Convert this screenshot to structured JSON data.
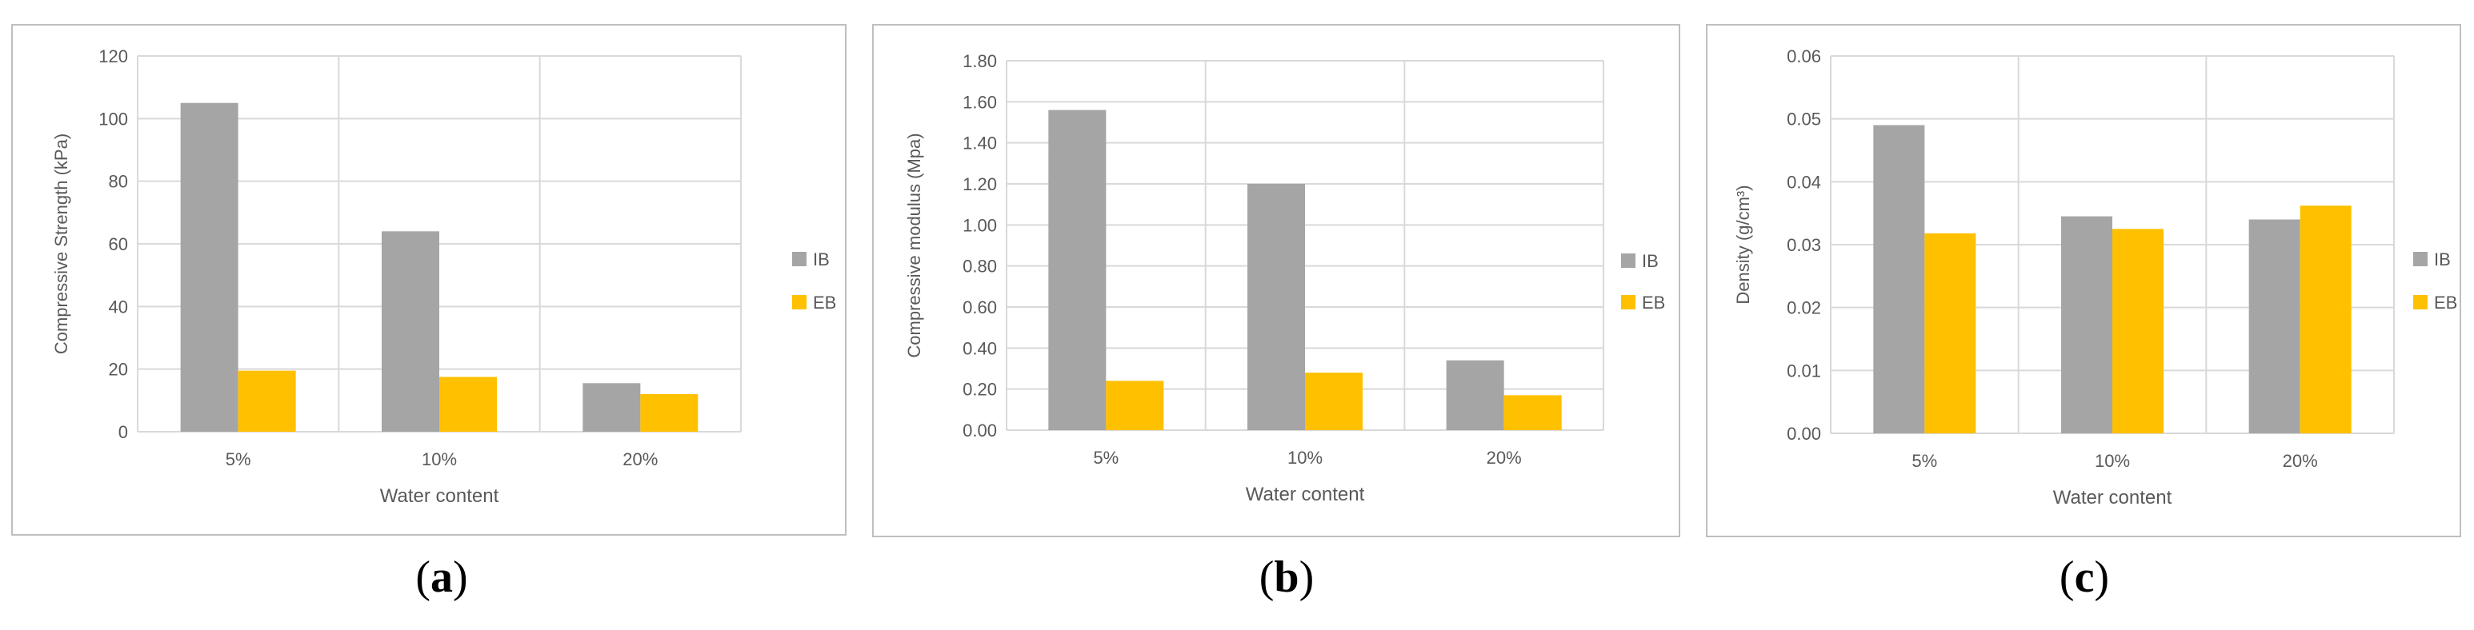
{
  "colors": {
    "ib": "#a5a5a5",
    "eb": "#ffc000",
    "grid": "#d9d9d9",
    "text": "#595959"
  },
  "captions": [
    "a",
    "b",
    "c"
  ],
  "chart_data": [
    {
      "type": "bar",
      "categories": [
        "5%",
        "10%",
        "20%"
      ],
      "series": [
        {
          "name": "IB",
          "values": [
            105,
            64,
            15.5
          ]
        },
        {
          "name": "EB",
          "values": [
            19.5,
            17.5,
            12
          ]
        }
      ],
      "xlabel": "Water content",
      "ylabel": "Compressive Strength (kPa)",
      "ylim": [
        0,
        120
      ],
      "yticks": [
        "0",
        "20",
        "40",
        "60",
        "80",
        "100",
        "120"
      ],
      "grid": true,
      "legend": "right"
    },
    {
      "type": "bar",
      "categories": [
        "5%",
        "10%",
        "20%"
      ],
      "series": [
        {
          "name": "IB",
          "values": [
            1.56,
            1.2,
            0.34
          ]
        },
        {
          "name": "EB",
          "values": [
            0.24,
            0.28,
            0.17
          ]
        }
      ],
      "xlabel": "Water content",
      "ylabel": "Compressive modulus (Mpa)",
      "ylim": [
        0,
        1.8
      ],
      "yticks": [
        "0.00",
        "0.20",
        "0.40",
        "0.60",
        "0.80",
        "1.00",
        "1.20",
        "1.40",
        "1.60",
        "1.80"
      ],
      "grid": true,
      "legend": "right"
    },
    {
      "type": "bar",
      "categories": [
        "5%",
        "10%",
        "20%"
      ],
      "series": [
        {
          "name": "IB",
          "values": [
            0.049,
            0.0345,
            0.034
          ]
        },
        {
          "name": "EB",
          "values": [
            0.0318,
            0.0325,
            0.0362
          ]
        }
      ],
      "xlabel": "Water content",
      "ylabel": "Density (g/cm³)",
      "ylim": [
        0,
        0.06
      ],
      "yticks": [
        "0.00",
        "0.01",
        "0.02",
        "0.03",
        "0.04",
        "0.05",
        "0.06"
      ],
      "grid": true,
      "legend": "right"
    }
  ]
}
